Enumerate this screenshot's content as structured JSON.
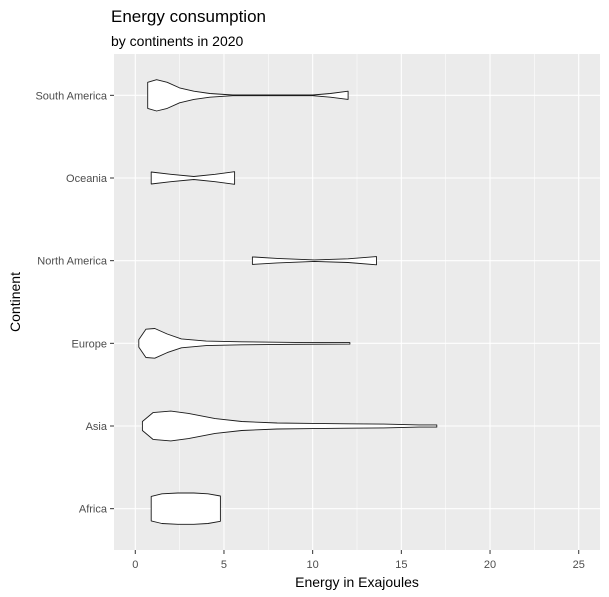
{
  "chart_data": {
    "type": "violin",
    "orientation": "horizontal",
    "title": "Energy consumption",
    "subtitle": "by continents in 2020",
    "xlabel": "Energy in Exajoules",
    "ylabel": "Continent",
    "xlim": [
      -1.2,
      26.2
    ],
    "x_ticks": [
      0,
      5,
      10,
      15,
      20,
      25
    ],
    "x_minor_ticks": [
      2.5,
      7.5,
      12.5,
      17.5,
      22.5
    ],
    "grid": true,
    "background": "#ebebeb",
    "categories": [
      "Africa",
      "Asia",
      "Europe",
      "North America",
      "Oceania",
      "South America"
    ],
    "series": [
      {
        "category": "Africa",
        "profile": [
          [
            0.9,
            0.33
          ],
          [
            1.5,
            0.4
          ],
          [
            2.4,
            0.42
          ],
          [
            3.3,
            0.42
          ],
          [
            4.1,
            0.4
          ],
          [
            4.8,
            0.34
          ]
        ]
      },
      {
        "category": "Asia",
        "profile": [
          [
            0.4,
            0.12
          ],
          [
            1.0,
            0.36
          ],
          [
            2.0,
            0.4
          ],
          [
            3.0,
            0.34
          ],
          [
            4.5,
            0.2
          ],
          [
            6.0,
            0.12
          ],
          [
            8.0,
            0.08
          ],
          [
            10.0,
            0.07
          ],
          [
            12.0,
            0.06
          ],
          [
            14.0,
            0.05
          ],
          [
            16.0,
            0.03
          ],
          [
            17.0,
            0.03
          ]
        ]
      },
      {
        "category": "Europe",
        "profile": [
          [
            0.2,
            0.1
          ],
          [
            0.6,
            0.38
          ],
          [
            1.1,
            0.4
          ],
          [
            1.8,
            0.25
          ],
          [
            2.6,
            0.12
          ],
          [
            4.0,
            0.06
          ],
          [
            6.0,
            0.04
          ],
          [
            9.0,
            0.025
          ],
          [
            12.1,
            0.02
          ]
        ]
      },
      {
        "category": "North America",
        "profile": [
          [
            6.6,
            0.1
          ],
          [
            8.0,
            0.06
          ],
          [
            10.1,
            0.02
          ],
          [
            12.0,
            0.05
          ],
          [
            13.6,
            0.11
          ]
        ]
      },
      {
        "category": "Oceania",
        "profile": [
          [
            0.9,
            0.16
          ],
          [
            2.0,
            0.1
          ],
          [
            3.3,
            0.04
          ],
          [
            4.5,
            0.1
          ],
          [
            5.6,
            0.17
          ]
        ]
      },
      {
        "category": "South America",
        "profile": [
          [
            0.7,
            0.35
          ],
          [
            1.2,
            0.42
          ],
          [
            1.8,
            0.35
          ],
          [
            2.5,
            0.2
          ],
          [
            3.3,
            0.11
          ],
          [
            4.2,
            0.05
          ],
          [
            5.5,
            0.01
          ],
          [
            10.0,
            0.01
          ],
          [
            11.0,
            0.05
          ],
          [
            12.0,
            0.11
          ]
        ]
      }
    ]
  }
}
